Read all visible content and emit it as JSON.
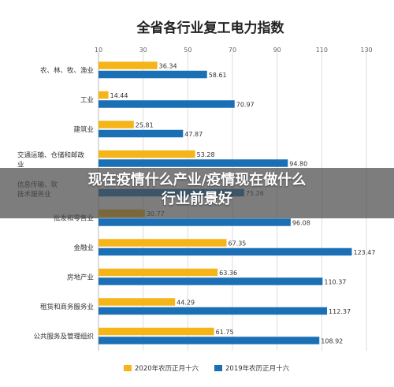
{
  "chart_data": {
    "type": "bar",
    "orientation": "horizontal",
    "title": "全省各行业复工电力指数",
    "x_ticks": [
      10,
      30,
      50,
      70,
      90,
      110,
      130
    ],
    "xlim": [
      10,
      130
    ],
    "grid": true,
    "legend_position": "bottom",
    "categories": [
      "农、林、牧、渔业",
      "工业",
      "建筑业",
      "交通运输、仓储和邮政业",
      "信息传输、软件和信息技术服务业",
      "批发和零售业",
      "金融业",
      "房地产业",
      "租赁和商务服务业",
      "公共服务及管理组织"
    ],
    "category_label_lines": [
      [
        "农、林、牧、渔业"
      ],
      [
        "工业"
      ],
      [
        "建筑业"
      ],
      [
        "交通运输、仓储和邮政",
        "业"
      ],
      [
        "信息传输、软",
        "技术服务业"
      ],
      [
        "批发和零售业"
      ],
      [
        "金融业"
      ],
      [
        "房地产业"
      ],
      [
        "租赁和商务服务业"
      ],
      [
        "公共服务及管理组织"
      ]
    ],
    "series": [
      {
        "name": "2020年农历正月十六",
        "color": "#F5B418",
        "values": [
          36.34,
          14.44,
          25.81,
          53.28,
          null,
          30.77,
          67.35,
          63.36,
          44.29,
          61.75
        ],
        "labels": [
          "36.34",
          "14.44",
          "25.81",
          "53.28",
          "",
          "30.77",
          "67.35",
          "63.36",
          "44.29",
          "61.75"
        ]
      },
      {
        "name": "2019年农历正月十六",
        "color": "#1A6FB5",
        "values": [
          58.61,
          70.97,
          47.87,
          94.8,
          75.26,
          96.08,
          123.47,
          110.37,
          112.37,
          108.92
        ],
        "labels": [
          "58.61",
          "70.97",
          "47.87",
          "94.80",
          "75.26",
          "96.08",
          "123.47",
          "110.37",
          "112.37",
          "108.92"
        ]
      }
    ]
  },
  "overlay": {
    "line1": "现在疫情什么产业/疫情现在做什么",
    "line2": "行业前景好"
  }
}
